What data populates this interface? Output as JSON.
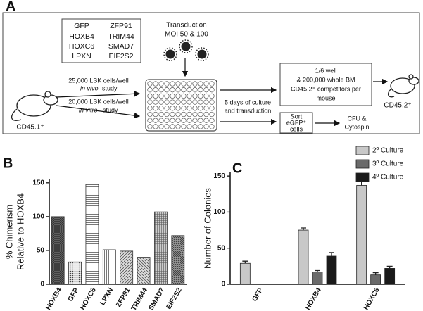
{
  "panel_a": {
    "label": "A",
    "genes": [
      "GFP",
      "HOXB4",
      "HOXC6",
      "LPXN",
      "ZFP91",
      "TRIM44",
      "SMAD7",
      "EIF2S2"
    ],
    "transduction": [
      "Transduction",
      "MOI 50 & 100"
    ],
    "in_vivo": {
      "count": "25,000 LSK cells/well",
      "italic": "in vivo",
      "rest": "study"
    },
    "in_vitro": {
      "count": "20,000 LSK cells/well",
      "italic": "in vitro",
      "rest": "study"
    },
    "donor": "CD45.1⁺",
    "culture": [
      "5 days of culture",
      "and transduction"
    ],
    "transplant": [
      "1/6 well",
      "& 200,000 whole BM",
      "CD45.2⁺ competitors per",
      "mouse"
    ],
    "recipient": "CD45.2⁺",
    "sort": [
      "Sort",
      "eGFP⁺",
      "cells"
    ],
    "assay": [
      "CFU &",
      "Cytospin"
    ]
  },
  "chart_data": [
    {
      "type": "bar",
      "label": "B",
      "ylabel": [
        "% Chimerism",
        "Relative to HOXB4"
      ],
      "categories": [
        "HOXB4",
        "GFP",
        "HOXC6",
        "LPXN",
        "ZFP91",
        "TRIM44",
        "SMAD7",
        "EIF2S2"
      ],
      "values": [
        100,
        33,
        148,
        51,
        49,
        40,
        107,
        72
      ],
      "ylim": [
        0,
        155
      ],
      "yticks": [
        0,
        50,
        100,
        150
      ]
    },
    {
      "type": "grouped_bar",
      "label": "C",
      "ylabel": [
        "Number of Colonies"
      ],
      "categories": [
        "GFP",
        "HOXB4",
        "HOXC6"
      ],
      "series": [
        {
          "name": "2º Culture",
          "color": "#c8c8c8",
          "values": [
            29,
            75,
            137
          ],
          "errors": [
            3,
            3,
            6
          ]
        },
        {
          "name": "3º Culture",
          "color": "#6a6a6a",
          "values": [
            null,
            17,
            13
          ],
          "errors": [
            null,
            2,
            3
          ]
        },
        {
          "name": "4º Culture",
          "color": "#1a1a1a",
          "values": [
            null,
            39,
            22
          ],
          "errors": [
            null,
            5,
            3
          ]
        }
      ],
      "ylim": [
        0,
        155
      ],
      "yticks": [
        0,
        50,
        100,
        150
      ],
      "legend": "top-right"
    }
  ]
}
